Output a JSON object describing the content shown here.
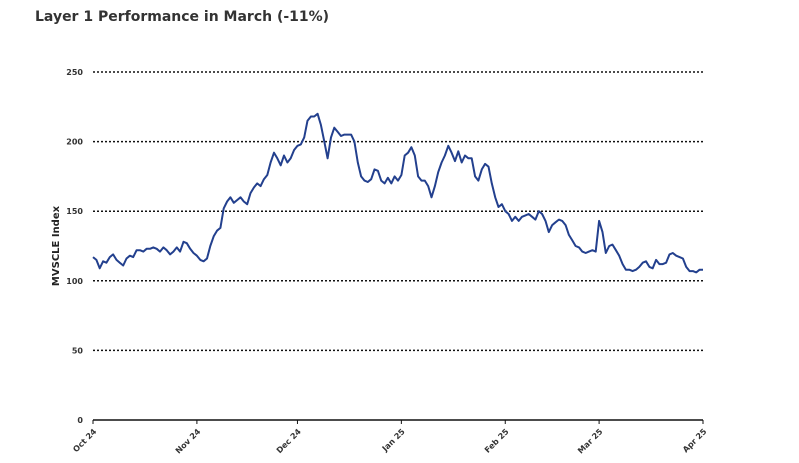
{
  "chart_data": {
    "type": "line",
    "title": "Layer 1 Performance in March (-11%)",
    "y_label": "MVSCLE Index",
    "x": [
      0,
      1,
      2,
      3,
      4,
      5,
      6,
      7,
      8,
      9,
      10,
      11,
      12,
      13,
      14,
      15,
      16,
      17,
      18,
      19,
      20,
      21,
      22,
      23,
      24,
      25,
      26,
      27,
      28,
      29,
      30,
      31,
      32,
      33,
      34,
      35,
      36,
      37,
      38,
      39,
      40,
      41,
      42,
      43,
      44,
      45,
      46,
      47,
      48,
      49,
      50,
      51,
      52,
      53,
      54,
      55,
      56,
      57,
      58,
      59,
      60,
      61,
      62,
      63,
      64,
      65,
      66,
      67,
      68,
      69,
      70,
      71,
      72,
      73,
      74,
      75,
      76,
      77,
      78,
      79,
      80,
      81,
      82,
      83,
      84,
      85,
      86,
      87,
      88,
      89,
      90,
      91,
      92,
      93,
      94,
      95,
      96,
      97,
      98,
      99,
      100,
      101,
      102,
      103,
      104,
      105,
      106,
      107,
      108,
      109,
      110,
      111,
      112,
      113,
      114,
      115,
      116,
      117,
      118,
      119,
      120,
      121,
      122,
      123,
      124,
      125,
      126,
      127,
      128,
      129,
      130,
      131,
      132,
      133,
      134,
      135,
      136,
      137,
      138,
      139,
      140,
      141,
      142,
      143,
      144,
      145,
      146,
      147,
      148,
      149,
      150,
      151,
      152,
      153,
      154,
      155,
      156,
      157,
      158,
      159,
      160,
      161,
      162,
      163,
      164,
      165,
      166,
      167,
      168,
      169,
      170,
      171,
      172,
      173,
      174,
      175,
      176,
      177,
      178,
      179,
      180,
      181,
      182
    ],
    "series": [
      {
        "name": "MVSCLE Index",
        "color": "#23408e",
        "values": [
          117,
          115,
          109,
          114,
          113,
          117,
          119,
          115,
          113,
          111,
          116,
          118,
          117,
          122,
          122,
          121,
          123,
          123,
          124,
          123,
          121,
          124,
          122,
          119,
          121,
          124,
          121,
          128,
          127,
          123,
          120,
          118,
          115,
          114,
          116,
          125,
          132,
          136,
          138,
          152,
          157,
          160,
          156,
          158,
          160,
          157,
          155,
          163,
          167,
          170,
          168,
          173,
          176,
          185,
          192,
          188,
          183,
          190,
          185,
          188,
          194,
          197,
          198,
          203,
          215,
          218,
          218,
          220,
          212,
          200,
          188,
          203,
          210,
          207,
          204,
          205,
          205,
          205,
          200,
          185,
          175,
          172,
          171,
          173,
          180,
          179,
          172,
          170,
          174,
          170,
          175,
          172,
          176,
          190,
          192,
          196,
          190,
          175,
          172,
          172,
          168,
          160,
          168,
          178,
          185,
          190,
          197,
          192,
          186,
          193,
          185,
          190,
          188,
          188,
          175,
          172,
          180,
          184,
          182,
          170,
          160,
          153,
          155,
          150,
          148,
          143,
          146,
          143,
          146,
          147,
          148,
          146,
          144,
          150,
          148,
          143,
          135,
          140,
          142,
          144,
          143,
          140,
          133,
          129,
          125,
          124,
          121,
          120,
          121,
          122,
          121,
          143,
          135,
          120,
          125,
          126,
          122,
          118,
          112,
          108,
          108,
          107,
          108,
          110,
          113,
          114,
          110,
          109,
          115,
          112,
          112,
          113,
          119,
          120,
          118,
          117,
          116,
          110,
          107,
          107,
          106,
          108,
          108
        ]
      }
    ],
    "xlim": [
      0,
      182
    ],
    "xticks": [
      {
        "value": 0,
        "label": "Oct 24"
      },
      {
        "value": 31,
        "label": "Nov 24"
      },
      {
        "value": 61,
        "label": "Dec 24"
      },
      {
        "value": 92,
        "label": "Jan 25"
      },
      {
        "value": 123,
        "label": "Feb 25"
      },
      {
        "value": 151,
        "label": "Mar 25"
      },
      {
        "value": 182,
        "label": "Apr 25"
      }
    ],
    "ylim": [
      0,
      250
    ],
    "yticks": [
      0,
      50,
      100,
      150,
      200,
      250
    ],
    "grid": true
  }
}
